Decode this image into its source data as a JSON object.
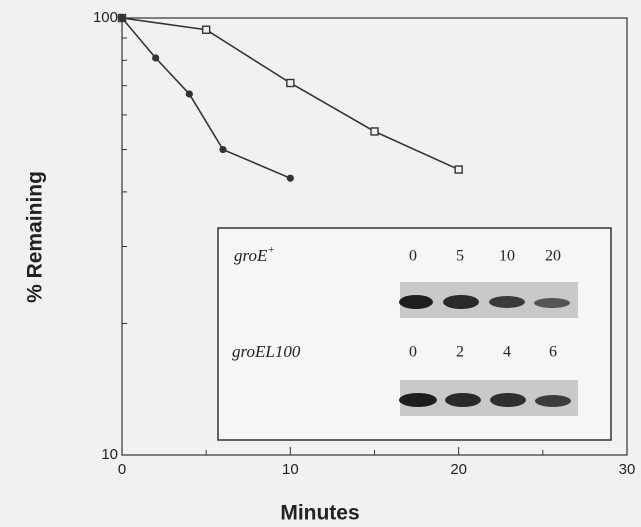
{
  "chart_data": {
    "type": "line",
    "x_label": "Minutes",
    "y_label": "% Remaining",
    "xlim": [
      0,
      30
    ],
    "xticks": [
      0,
      10,
      20,
      30
    ],
    "xminorticks": [
      5,
      15,
      25
    ],
    "ylim": [
      10,
      100
    ],
    "yticks": [
      10,
      100
    ],
    "yminorticks": [
      20,
      30,
      40,
      50,
      60,
      70,
      80,
      90
    ],
    "log_y": true,
    "series": [
      {
        "marker": "square",
        "color": "#333333",
        "x": [
          0,
          5,
          10,
          15,
          20
        ],
        "values": [
          100,
          94,
          71,
          55,
          45
        ]
      },
      {
        "marker": "circle",
        "color": "#333333",
        "x": [
          0,
          2,
          4,
          6,
          10
        ],
        "values": [
          100,
          81,
          67,
          50,
          43
        ]
      }
    ]
  },
  "inset": {
    "lanes": [
      {
        "name": "groE",
        "superscript": "+",
        "times": [
          "0",
          "5",
          "10",
          "20"
        ]
      },
      {
        "name": "groEL100",
        "superscript": null,
        "times": [
          "0",
          "2",
          "4",
          "6"
        ]
      }
    ]
  }
}
